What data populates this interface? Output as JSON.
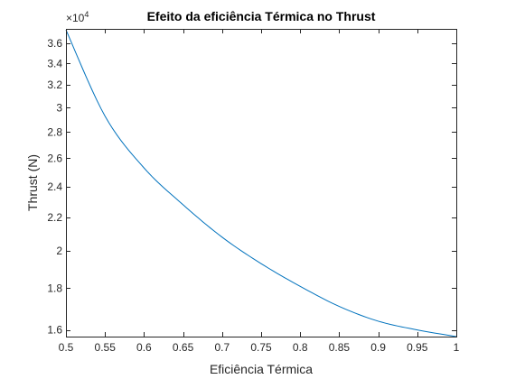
{
  "chart_data": {
    "type": "line",
    "title": "Efeito da eficiência Térmica no Thrust",
    "xlabel": "Eficiência Térmica",
    "ylabel": "Thrust (N)",
    "y_exponent_prefix": "×10",
    "y_exponent_power": "4",
    "y_scale": "log",
    "xlim": [
      0.5,
      1.0
    ],
    "ylim": [
      15700,
      37500
    ],
    "x_ticks": [
      0.5,
      0.55,
      0.6,
      0.65,
      0.7,
      0.75,
      0.8,
      0.85,
      0.9,
      0.95,
      1.0
    ],
    "x_tick_labels": [
      "0.5",
      "0.55",
      "0.6",
      "0.65",
      "0.7",
      "0.75",
      "0.8",
      "0.85",
      "0.9",
      "0.95",
      "1"
    ],
    "y_ticks": [
      16000,
      18000,
      20000,
      22000,
      24000,
      26000,
      28000,
      30000,
      32000,
      34000,
      36000
    ],
    "y_tick_labels": [
      "1.6",
      "1.8",
      "2",
      "2.2",
      "2.4",
      "2.6",
      "2.8",
      "3",
      "3.2",
      "3.4",
      "3.6"
    ],
    "grid": false,
    "series": [
      {
        "color": "#0072BD",
        "x": [
          0.5,
          0.55,
          0.6,
          0.65,
          0.7,
          0.75,
          0.8,
          0.85,
          0.9,
          0.95,
          1.0
        ],
        "y": [
          37400,
          29300,
          25300,
          22800,
          20800,
          19300,
          18100,
          17100,
          16400,
          16000,
          15700
        ]
      }
    ]
  }
}
